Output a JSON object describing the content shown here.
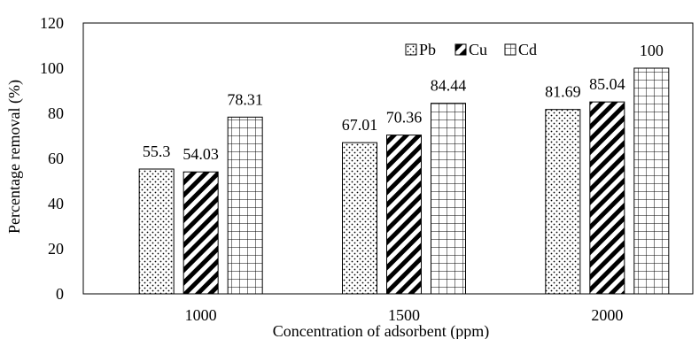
{
  "chart_data": {
    "type": "bar",
    "title": "",
    "xlabel": "Concentration of adsorbent (ppm)",
    "ylabel": "Percentage removal (%)",
    "categories": [
      "1000",
      "1500",
      "2000"
    ],
    "ylim": [
      0,
      120
    ],
    "yticks": [
      0,
      20,
      40,
      60,
      80,
      100,
      120
    ],
    "grid": false,
    "legend_position": "top-right",
    "series": [
      {
        "name": "Pb",
        "pattern": "dots",
        "values": [
          55.3,
          67.01,
          81.69
        ],
        "labels": [
          "55.3",
          "67.01",
          "81.69"
        ]
      },
      {
        "name": "Cu",
        "pattern": "diagonal-stripes",
        "values": [
          54.03,
          70.36,
          85.04
        ],
        "labels": [
          "54.03",
          "70.36",
          "85.04"
        ]
      },
      {
        "name": "Cd",
        "pattern": "grid",
        "values": [
          78.31,
          84.44,
          100
        ],
        "labels": [
          "78.31",
          "84.44",
          "100"
        ]
      }
    ],
    "colors": {
      "stroke": "#000000",
      "background": "#ffffff"
    }
  }
}
